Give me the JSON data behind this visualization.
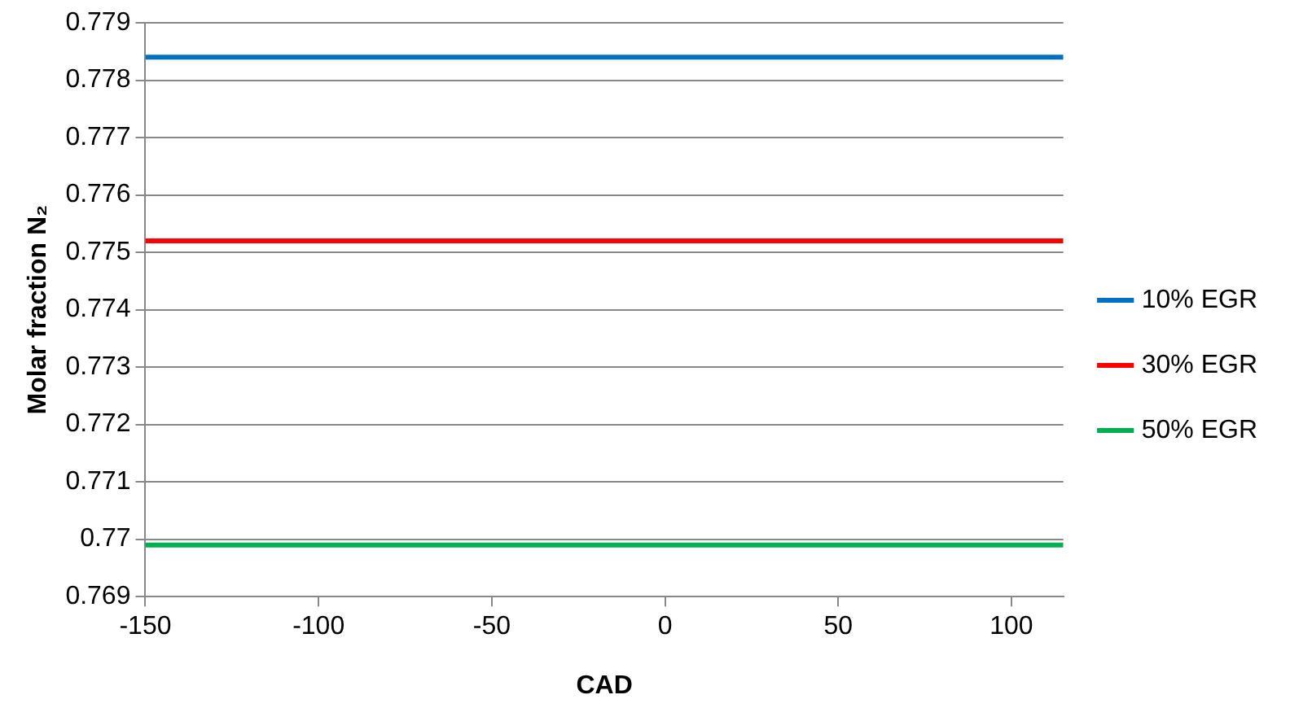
{
  "chart_data": {
    "type": "line",
    "xlabel": "CAD",
    "ylabel": "Molar fraction N₂",
    "x": [
      -150,
      115
    ],
    "series": [
      {
        "name": "10% EGR",
        "color": "#0070c0",
        "values": [
          0.7784,
          0.7784
        ]
      },
      {
        "name": "30% EGR",
        "color": "#ff0000",
        "values": [
          0.7752,
          0.7752
        ]
      },
      {
        "name": "50% EGR",
        "color": "#00b050",
        "values": [
          0.7699,
          0.7699
        ]
      }
    ],
    "xlim": [
      -150,
      115
    ],
    "xticks": [
      -150,
      -100,
      -50,
      0,
      50,
      100
    ],
    "ylim": [
      0.769,
      0.779
    ],
    "yticks": [
      0.769,
      0.77,
      0.771,
      0.772,
      0.773,
      0.774,
      0.775,
      0.776,
      0.777,
      0.778,
      0.779
    ],
    "grid": "y",
    "legend": "right",
    "marker": "none",
    "line_style": "solid"
  }
}
